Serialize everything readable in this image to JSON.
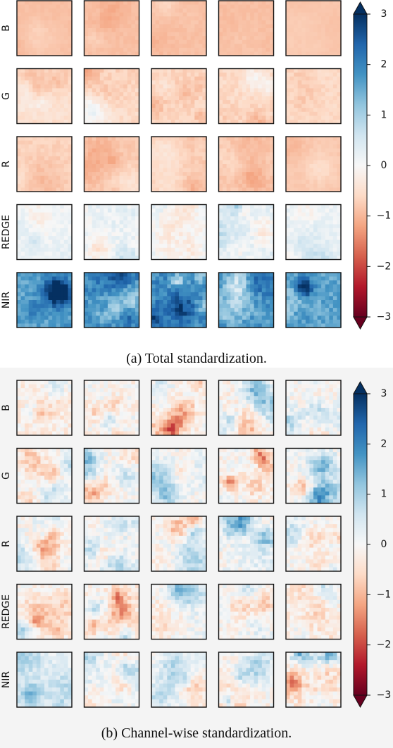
{
  "chart_data": [
    {
      "type": "heatmap",
      "caption": "(a) Total standardization.",
      "rows": [
        "B",
        "G",
        "R",
        "REDGE",
        "NIR"
      ],
      "columns": 5,
      "colormap": "RdBu",
      "colorbar": {
        "min": -3,
        "max": 3,
        "ticks": [
          3,
          2,
          1,
          0,
          -1,
          -2,
          -3
        ],
        "extend": "both"
      },
      "approx_row_means": [
        [
          -0.9,
          -0.9,
          -0.9,
          -0.9,
          -0.8
        ],
        [
          -0.5,
          -0.6,
          -0.6,
          -0.6,
          -0.6
        ],
        [
          -0.7,
          -0.8,
          -0.8,
          -0.8,
          -0.8
        ],
        [
          0.1,
          0.2,
          0.3,
          0.3,
          0.2
        ],
        [
          1.6,
          1.9,
          1.9,
          1.8,
          1.6
        ]
      ],
      "approx_row_spread": [
        [
          0.15,
          0.2,
          0.2,
          0.2,
          0.1
        ],
        [
          0.4,
          0.5,
          0.5,
          0.5,
          0.4
        ],
        [
          0.35,
          0.35,
          0.35,
          0.35,
          0.2
        ],
        [
          0.6,
          0.8,
          0.8,
          0.8,
          0.6
        ],
        [
          0.9,
          1.1,
          1.2,
          1.2,
          1.0
        ]
      ]
    },
    {
      "type": "heatmap",
      "caption": "(b) Channel-wise standardization.",
      "rows": [
        "B",
        "G",
        "R",
        "REDGE",
        "NIR"
      ],
      "columns": 5,
      "colormap": "RdBu",
      "colorbar": {
        "min": -3,
        "max": 3,
        "ticks": [
          3,
          2,
          1,
          0,
          -1,
          -2,
          -3
        ],
        "extend": "both"
      },
      "approx_row_means": [
        [
          -0.2,
          -0.1,
          -0.1,
          -0.1,
          0.0
        ],
        [
          0.0,
          0.0,
          0.0,
          0.0,
          0.0
        ],
        [
          0.0,
          0.0,
          0.0,
          0.0,
          0.0
        ],
        [
          0.0,
          -0.2,
          0.1,
          0.0,
          -0.3
        ],
        [
          0.3,
          0.2,
          0.1,
          -0.1,
          -0.3
        ]
      ],
      "approx_row_spread": [
        [
          1.2,
          1.3,
          1.2,
          1.3,
          1.3
        ],
        [
          1.2,
          1.3,
          1.2,
          1.3,
          1.3
        ],
        [
          1.2,
          1.3,
          1.2,
          1.3,
          1.2
        ],
        [
          1.1,
          1.3,
          1.2,
          1.2,
          1.3
        ],
        [
          1.0,
          1.3,
          1.1,
          1.2,
          1.5
        ]
      ]
    }
  ]
}
